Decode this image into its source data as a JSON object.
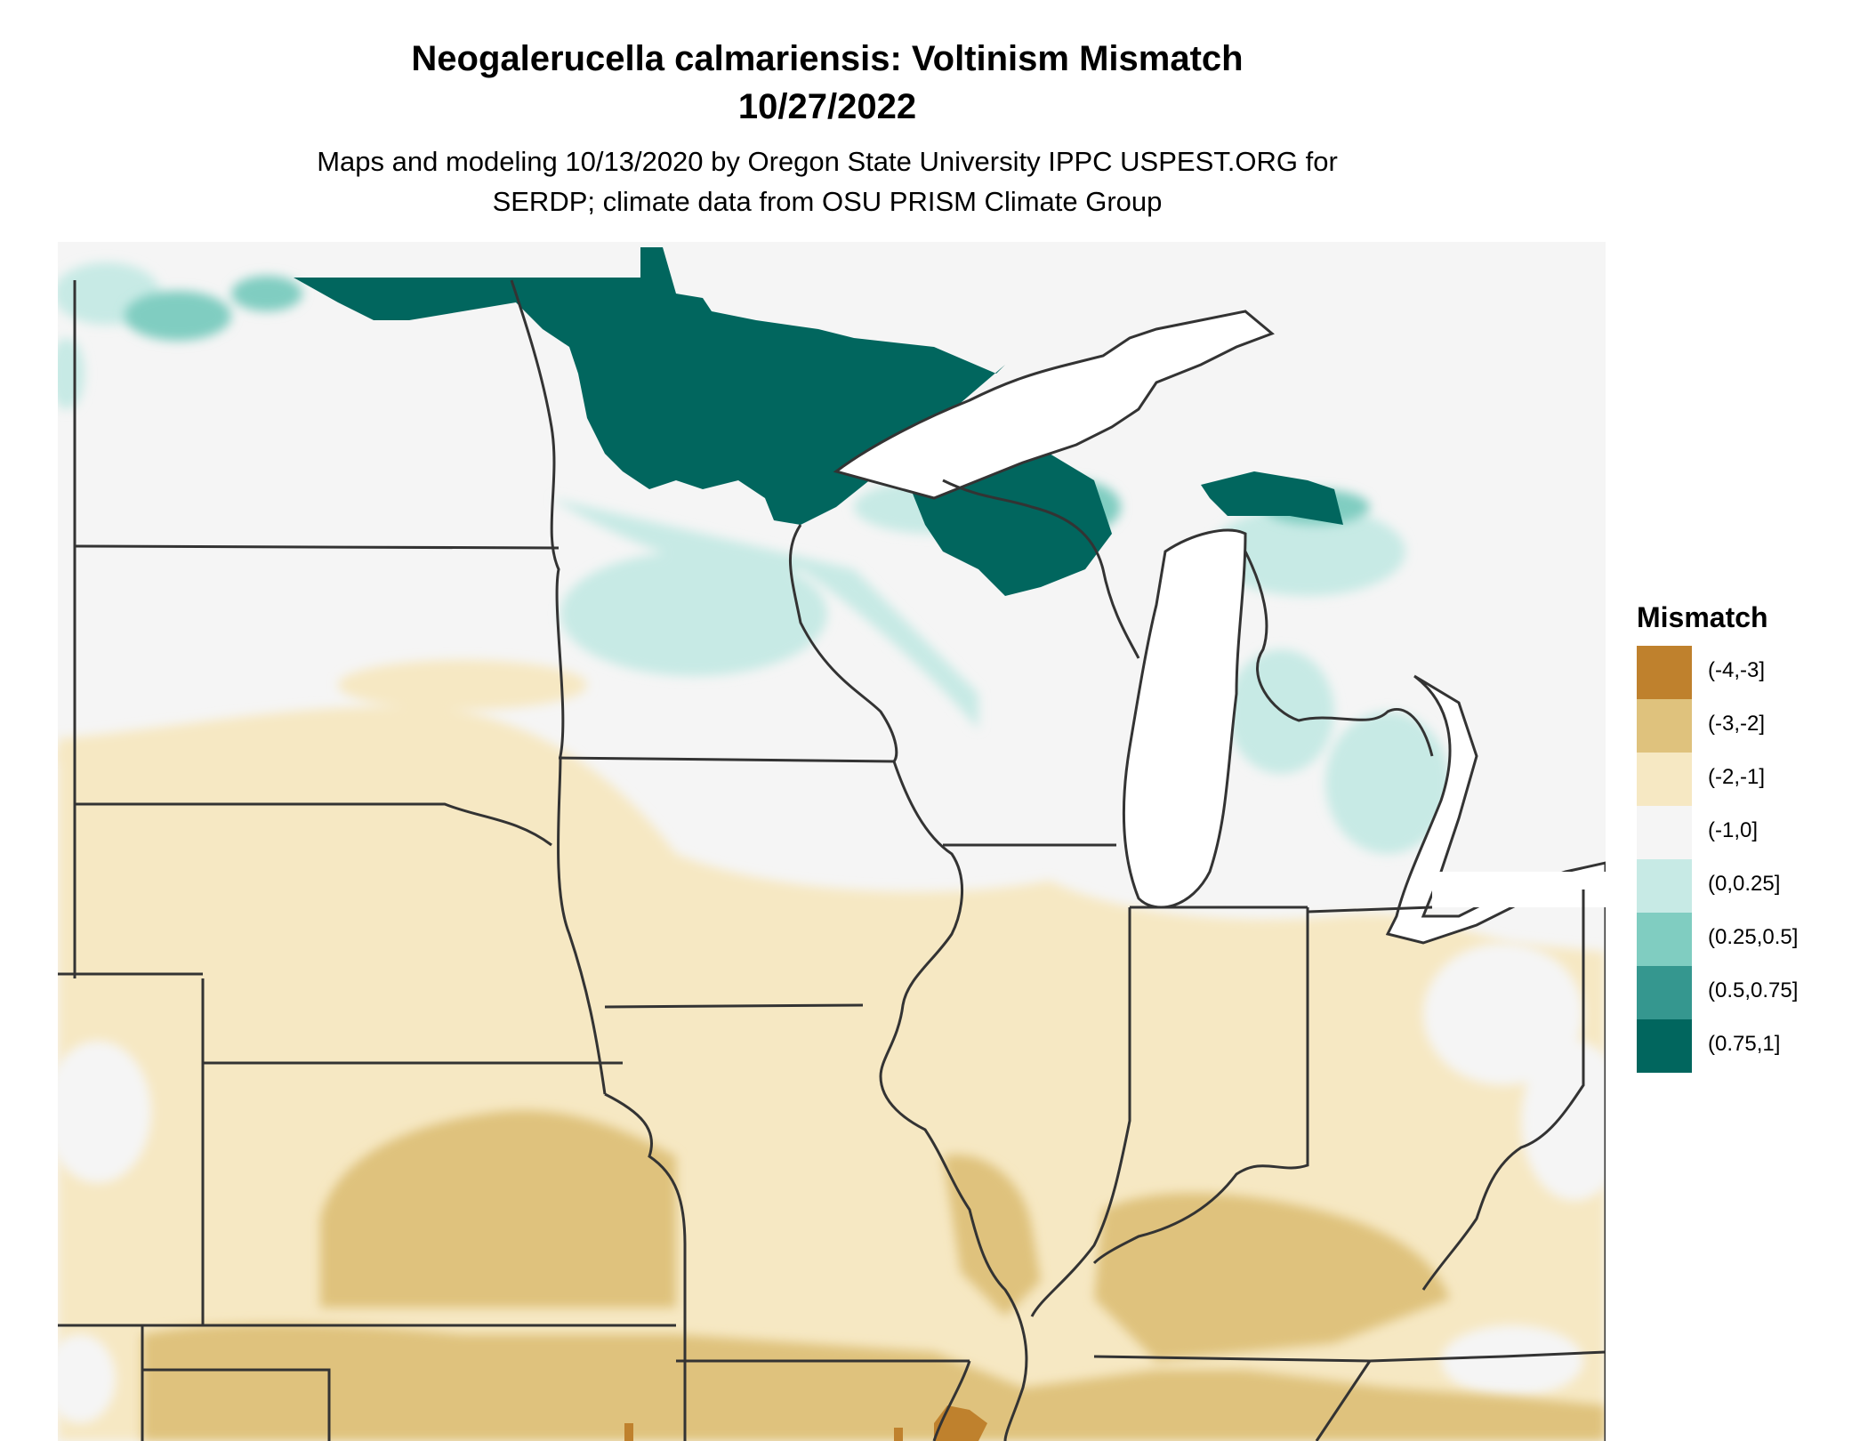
{
  "title": {
    "line1": "Neogalerucella calmariensis: Voltinism Mismatch",
    "line2": "10/27/2022"
  },
  "subtitle": {
    "line1": "Maps and modeling 10/13/2020 by Oregon State University IPPC USPEST.ORG for",
    "line2": "SERDP; climate data from OSU PRISM Climate Group"
  },
  "legend": {
    "title": "Mismatch",
    "items": [
      {
        "label": "(-4,-3]",
        "color": "#bf812d"
      },
      {
        "label": "(-3,-2]",
        "color": "#dfc27d"
      },
      {
        "label": "(-2,-1]",
        "color": "#f6e8c3"
      },
      {
        "label": "(-1,0]",
        "color": "#f5f5f5"
      },
      {
        "label": "(0,0.25]",
        "color": "#c7eae5"
      },
      {
        "label": "(0.25,0.5]",
        "color": "#80cdc1"
      },
      {
        "label": "(0.5,0.75]",
        "color": "#35978f"
      },
      {
        "label": "(0.75,1]",
        "color": "#01665e"
      }
    ]
  },
  "map": {
    "region": "Upper Midwest / Great Lakes, USA",
    "boundary_color": "#333333",
    "water_color": "#ffffff"
  }
}
